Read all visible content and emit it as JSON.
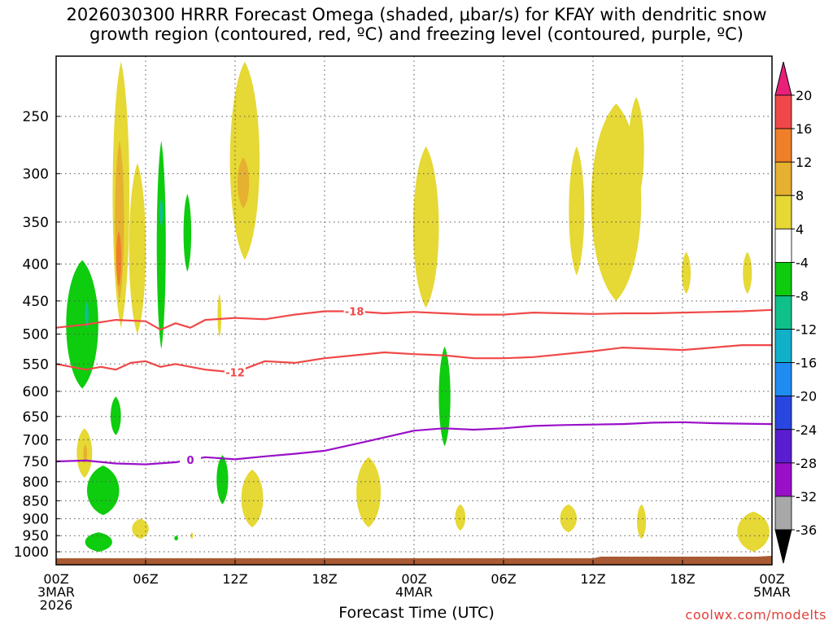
{
  "title_line1": "2026030300 HRRR Forecast Omega (shaded, μbar/s) for KFAY with dendritic snow",
  "title_line2": "growth region (contoured, red, ºC) and freezing level (contoured, purple, ºC)",
  "xaxis_title": "Forecast Time (UTC)",
  "credit": "coolwx.com/modelts",
  "chart_data": {
    "type": "heatmap",
    "x_unit": "forecast hour",
    "xlim": [
      0,
      48
    ],
    "ylim": [
      1010,
      200
    ],
    "y_scale": "log-pressure",
    "grid": true,
    "y_ticks": [
      250,
      300,
      350,
      400,
      450,
      500,
      550,
      600,
      650,
      700,
      750,
      800,
      850,
      900,
      950,
      1000
    ],
    "x_ticks": [
      {
        "hour": 0,
        "lines": [
          "00Z",
          "3MAR",
          "2026"
        ]
      },
      {
        "hour": 6,
        "lines": [
          "06Z"
        ]
      },
      {
        "hour": 12,
        "lines": [
          "12Z"
        ]
      },
      {
        "hour": 18,
        "lines": [
          "18Z"
        ]
      },
      {
        "hour": 24,
        "lines": [
          "00Z",
          "4MAR"
        ]
      },
      {
        "hour": 30,
        "lines": [
          "06Z"
        ]
      },
      {
        "hour": 36,
        "lines": [
          "12Z"
        ]
      },
      {
        "hour": 42,
        "lines": [
          "18Z"
        ]
      },
      {
        "hour": 48,
        "lines": [
          "00Z",
          "5MAR"
        ]
      }
    ],
    "colorbar": {
      "labels": [
        "20",
        "16",
        "12",
        "8",
        "4",
        "-4",
        "-8",
        "-12",
        "-16",
        "-20",
        "-24",
        "-28",
        "-32",
        "-36"
      ],
      "bins": [
        {
          "lo": 16,
          "hi": 20,
          "color": "#f04848"
        },
        {
          "lo": 12,
          "hi": 16,
          "color": "#f07f2a"
        },
        {
          "lo": 8,
          "hi": 12,
          "color": "#e6b030"
        },
        {
          "lo": 4,
          "hi": 8,
          "color": "#e6d835"
        },
        {
          "lo": -4,
          "hi": 4,
          "color": "#ffffff"
        },
        {
          "lo": -8,
          "hi": -4,
          "color": "#0ecc0e"
        },
        {
          "lo": -12,
          "hi": -8,
          "color": "#10c08a"
        },
        {
          "lo": -16,
          "hi": -12,
          "color": "#10b0c8"
        },
        {
          "lo": -20,
          "hi": -16,
          "color": "#1e8cf0"
        },
        {
          "lo": -24,
          "hi": -20,
          "color": "#2846e0"
        },
        {
          "lo": -28,
          "hi": -24,
          "color": "#5a1ed0"
        },
        {
          "lo": -32,
          "hi": -28,
          "color": "#9a10c8"
        },
        {
          "lo": -36,
          "hi": -32,
          "color": "#a8a8a8"
        }
      ],
      "top_color": "#e8207a",
      "bottom_color": "#000000"
    },
    "terrain_color": "#a85a32",
    "omega_regions": [
      {
        "value": 6,
        "color": "#e6d835",
        "x_range": [
          3.7,
          5.0
        ],
        "p_range": [
          210,
          490
        ]
      },
      {
        "value": 10,
        "color": "#e6b030",
        "x_range": [
          3.9,
          4.6
        ],
        "p_range": [
          270,
          450
        ]
      },
      {
        "value": 14,
        "color": "#f07f2a",
        "x_range": [
          4.0,
          4.4
        ],
        "p_range": [
          360,
          430
        ]
      },
      {
        "value": 6,
        "color": "#e6d835",
        "x_range": [
          4.8,
          6.1
        ],
        "p_range": [
          290,
          500
        ]
      },
      {
        "value": 6,
        "color": "#e6d835",
        "x_range": [
          11.5,
          13.8
        ],
        "p_range": [
          210,
          395
        ]
      },
      {
        "value": 10,
        "color": "#e6b030",
        "x_range": [
          12.1,
          13.0
        ],
        "p_range": [
          285,
          335
        ]
      },
      {
        "value": 6,
        "color": "#e6d835",
        "x_range": [
          10.8,
          11.1
        ],
        "p_range": [
          440,
          505
        ]
      },
      {
        "value": 6,
        "color": "#e6d835",
        "x_range": [
          23.8,
          25.8
        ],
        "p_range": [
          275,
          460
        ]
      },
      {
        "value": 6,
        "color": "#e6d835",
        "x_range": [
          34.3,
          35.5
        ],
        "p_range": [
          275,
          415
        ]
      },
      {
        "value": 6,
        "color": "#e6d835",
        "x_range": [
          35.6,
          39.5
        ],
        "p_range": [
          240,
          450
        ]
      },
      {
        "value": 6,
        "color": "#e6d835",
        "x_range": [
          38.3,
          39.5
        ],
        "p_range": [
          235,
          330
        ]
      },
      {
        "value": 6,
        "color": "#e6d835",
        "x_range": [
          41.9,
          42.6
        ],
        "p_range": [
          385,
          440
        ]
      },
      {
        "value": 6,
        "color": "#e6d835",
        "x_range": [
          46.0,
          46.7
        ],
        "p_range": [
          385,
          440
        ]
      },
      {
        "value": 6,
        "color": "#e6d835",
        "x_range": [
          1.3,
          2.5
        ],
        "p_range": [
          675,
          790
        ]
      },
      {
        "value": 10,
        "color": "#e6b030",
        "x_range": [
          1.8,
          2.1
        ],
        "p_range": [
          710,
          755
        ]
      },
      {
        "value": 6,
        "color": "#e6d835",
        "x_range": [
          12.3,
          14.0
        ],
        "p_range": [
          770,
          925
        ]
      },
      {
        "value": 6,
        "color": "#e6d835",
        "x_range": [
          5.0,
          6.3
        ],
        "p_range": [
          900,
          960
        ]
      },
      {
        "value": 6,
        "color": "#e6d835",
        "x_range": [
          9.0,
          9.2
        ],
        "p_range": [
          940,
          960
        ]
      },
      {
        "value": 6,
        "color": "#e6d835",
        "x_range": [
          20.0,
          21.9
        ],
        "p_range": [
          740,
          925
        ]
      },
      {
        "value": 6,
        "color": "#e6d835",
        "x_range": [
          26.7,
          27.5
        ],
        "p_range": [
          860,
          935
        ]
      },
      {
        "value": 6,
        "color": "#e6d835",
        "x_range": [
          33.7,
          35.0
        ],
        "p_range": [
          860,
          940
        ]
      },
      {
        "value": 6,
        "color": "#e6d835",
        "x_range": [
          38.9,
          39.6
        ],
        "p_range": [
          860,
          960
        ]
      },
      {
        "value": 6,
        "color": "#e6d835",
        "x_range": [
          45.5,
          48.0
        ],
        "p_range": [
          880,
          1000
        ]
      },
      {
        "value": -6,
        "color": "#0ecc0e",
        "x_range": [
          0.5,
          3.0
        ],
        "p_range": [
          395,
          595
        ]
      },
      {
        "value": -10,
        "color": "#10c08a",
        "x_range": [
          1.9,
          2.2
        ],
        "p_range": [
          450,
          490
        ]
      },
      {
        "value": -6,
        "color": "#0ecc0e",
        "x_range": [
          6.7,
          7.4
        ],
        "p_range": [
          270,
          525
        ]
      },
      {
        "value": -10,
        "color": "#10c08a",
        "x_range": [
          6.9,
          7.2
        ],
        "p_range": [
          325,
          355
        ]
      },
      {
        "value": -6,
        "color": "#0ecc0e",
        "x_range": [
          8.5,
          9.1
        ],
        "p_range": [
          320,
          410
        ]
      },
      {
        "value": -6,
        "color": "#0ecc0e",
        "x_range": [
          3.6,
          4.4
        ],
        "p_range": [
          610,
          690
        ]
      },
      {
        "value": -6,
        "color": "#0ecc0e",
        "x_range": [
          1.9,
          4.4
        ],
        "p_range": [
          760,
          890
        ]
      },
      {
        "value": -6,
        "color": "#0ecc0e",
        "x_range": [
          10.7,
          11.6
        ],
        "p_range": [
          735,
          860
        ]
      },
      {
        "value": -6,
        "color": "#0ecc0e",
        "x_range": [
          1.8,
          3.9
        ],
        "p_range": [
          940,
          1000
        ]
      },
      {
        "value": -6,
        "color": "#0ecc0e",
        "x_range": [
          7.9,
          8.2
        ],
        "p_range": [
          950,
          965
        ]
      },
      {
        "value": -6,
        "color": "#0ecc0e",
        "x_range": [
          25.6,
          26.5
        ],
        "p_range": [
          520,
          715
        ]
      }
    ],
    "contours": [
      {
        "label": "-18",
        "color": "#f04848",
        "x": [
          0,
          2,
          4,
          6,
          7,
          8,
          9,
          10,
          12,
          14,
          16,
          18,
          20,
          22,
          24,
          26,
          28,
          30,
          32,
          34,
          36,
          38,
          40,
          42,
          44,
          46,
          48
        ],
        "p": [
          490,
          485,
          478,
          480,
          493,
          483,
          490,
          478,
          475,
          477,
          470,
          465,
          465,
          468,
          466,
          468,
          470,
          470,
          467,
          468,
          469,
          468,
          468,
          467,
          466,
          465,
          463
        ],
        "label_at": 20
      },
      {
        "label": "-12",
        "color": "#f04848",
        "x": [
          0,
          2,
          3,
          4,
          5,
          6,
          7,
          8,
          10,
          12,
          14,
          16,
          18,
          20,
          22,
          24,
          26,
          28,
          30,
          32,
          34,
          36,
          38,
          40,
          42,
          44,
          46,
          48
        ],
        "p": [
          550,
          560,
          555,
          560,
          548,
          545,
          555,
          550,
          560,
          565,
          545,
          548,
          540,
          535,
          530,
          533,
          535,
          540,
          540,
          538,
          533,
          528,
          522,
          524,
          526,
          522,
          518,
          518
        ],
        "label_at": 12
      },
      {
        "label": "0",
        "color": "#9a10c8",
        "x": [
          0,
          2,
          4,
          6,
          8,
          10,
          12,
          14,
          16,
          18,
          20,
          22,
          24,
          26,
          28,
          30,
          32,
          34,
          36,
          38,
          40,
          42,
          44,
          46,
          48
        ],
        "p": [
          750,
          748,
          755,
          757,
          752,
          740,
          745,
          738,
          732,
          725,
          710,
          695,
          680,
          675,
          678,
          675,
          670,
          668,
          667,
          666,
          663,
          662,
          664,
          665,
          666
        ],
        "label_at": 9
      }
    ]
  }
}
